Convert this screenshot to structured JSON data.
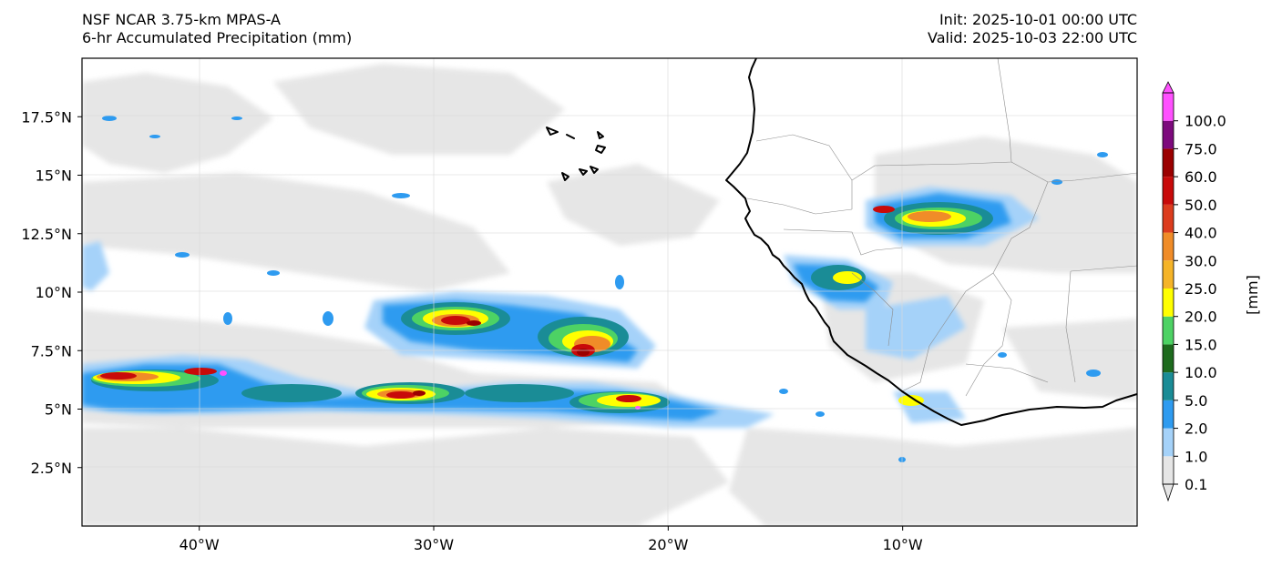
{
  "header": {
    "title_line1": "NSF NCAR 3.75-km MPAS-A",
    "title_line2": "6-hr Accumulated Precipitation (mm)",
    "init_text": "Init: 2025-10-01 00:00 UTC",
    "valid_text": "Valid: 2025-10-03 22:00 UTC"
  },
  "map": {
    "lon_range": [
      -45,
      0
    ],
    "lat_range": [
      0,
      20
    ],
    "lon_ticks": [
      {
        "value": -40,
        "label": "40°W"
      },
      {
        "value": -30,
        "label": "30°W"
      },
      {
        "value": -20,
        "label": "20°W"
      },
      {
        "value": -10,
        "label": "10°W"
      }
    ],
    "lat_ticks": [
      {
        "value": 2.5,
        "label": "2.5°N"
      },
      {
        "value": 5,
        "label": "5°N"
      },
      {
        "value": 7.5,
        "label": "7.5°N"
      },
      {
        "value": 10,
        "label": "10°N"
      },
      {
        "value": 12.5,
        "label": "12.5°N"
      },
      {
        "value": 15,
        "label": "15°N"
      },
      {
        "value": 17.5,
        "label": "17.5°N"
      }
    ],
    "gridlines": true,
    "coastline_color": "#000000"
  },
  "colorbar": {
    "unit_label": "[mm]",
    "levels": [
      "0.1",
      "1.0",
      "2.0",
      "5.0",
      "10.0",
      "15.0",
      "20.0",
      "25.0",
      "30.0",
      "40.0",
      "50.0",
      "60.0",
      "75.0",
      "100.0"
    ],
    "colors": [
      "#e6e6e6",
      "#a5d2f9",
      "#2e9bf0",
      "#1a8c96",
      "#1e6b1e",
      "#4dd264",
      "#ffff00",
      "#f5b428",
      "#f08c28",
      "#dc3c1e",
      "#c80a0a",
      "#9b0000",
      "#7d0a7d",
      "#ff50ff"
    ]
  }
}
